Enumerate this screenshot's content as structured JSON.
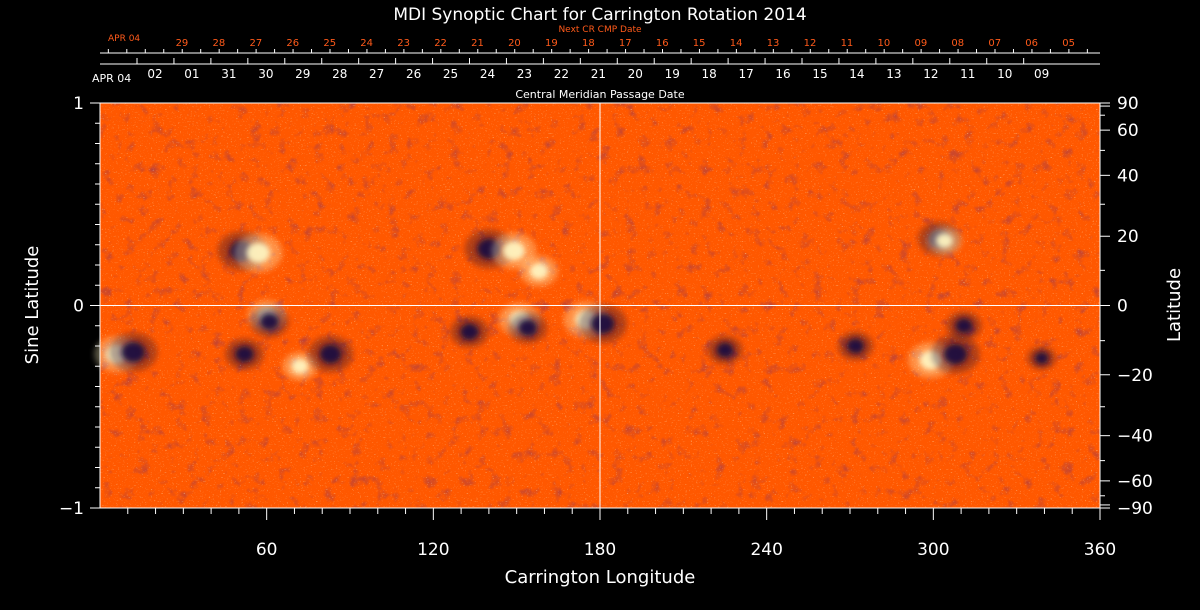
{
  "chart_data": {
    "type": "heatmap",
    "title": "MDI Synoptic Chart for Carrington Rotation 2014",
    "xlabel": "Carrington Longitude",
    "ylabel_left": "Sine Latitude",
    "ylabel_right": "Latitude",
    "xlim": [
      0,
      360
    ],
    "ylim": [
      -1,
      1
    ],
    "x_ticks": [
      60,
      120,
      180,
      240,
      300,
      360
    ],
    "y_ticks_left": [
      1,
      0,
      -1
    ],
    "y_ticks_right": [
      90,
      60,
      40,
      20,
      0,
      -20,
      -40,
      -60,
      -90
    ],
    "y_tick_labels_right": [
      "90",
      "60",
      "40",
      "20",
      "0",
      "−20",
      "−40",
      "−60",
      "−90"
    ],
    "y_tick_labels_left": [
      "1",
      "0",
      "−1"
    ],
    "grid": "crosshair at longitude 180 and sine latitude 0",
    "date_axis": {
      "label": "Central Meridian Passage Date",
      "start_label": "APR 04",
      "days": [
        "02",
        "01",
        "31",
        "30",
        "29",
        "28",
        "27",
        "26",
        "25",
        "24",
        "23",
        "22",
        "21",
        "20",
        "19",
        "18",
        "17",
        "16",
        "15",
        "14",
        "13",
        "12",
        "11",
        "10",
        "09"
      ],
      "day_longitudes": [
        19.8,
        33.1,
        46.4,
        59.7,
        73.0,
        86.3,
        99.6,
        112.9,
        126.2,
        139.5,
        152.8,
        166.1,
        179.4,
        192.7,
        206.0,
        219.3,
        232.6,
        245.9,
        259.2,
        272.5,
        285.8,
        299.1,
        312.4,
        325.7,
        339.0
      ]
    },
    "next_rotation_axis": {
      "label": "Next CR CMP Date",
      "start_label": "APR 04",
      "days": [
        "29",
        "28",
        "27",
        "26",
        "25",
        "24",
        "23",
        "22",
        "21",
        "20",
        "19",
        "18",
        "17",
        "16",
        "15",
        "14",
        "13",
        "12",
        "11",
        "10",
        "09",
        "08",
        "07",
        "06",
        "05"
      ],
      "day_longitudes": [
        29.5,
        42.8,
        56.1,
        69.4,
        82.7,
        96.0,
        109.3,
        122.6,
        135.9,
        149.2,
        162.5,
        175.8,
        189.1,
        202.4,
        215.7,
        229.0,
        242.3,
        255.6,
        268.9,
        282.2,
        295.5,
        308.8,
        322.1,
        335.4,
        348.7
      ]
    },
    "colors": {
      "background_field": "#ff5a00",
      "positive_polarity": "#fff4c0",
      "negative_polarity": "#1a1040",
      "axes": "#ffffff",
      "next_rotation_text": "#ff5a1a"
    },
    "magnetic_regions": [
      {
        "longitude": 51,
        "sine_latitude": 0.27,
        "polarity": "negative",
        "strength": 0.9
      },
      {
        "longitude": 57,
        "sine_latitude": 0.26,
        "polarity": "positive",
        "strength": 0.9
      },
      {
        "longitude": 140,
        "sine_latitude": 0.28,
        "polarity": "negative",
        "strength": 0.9
      },
      {
        "longitude": 149,
        "sine_latitude": 0.27,
        "polarity": "positive",
        "strength": 0.8
      },
      {
        "longitude": 158,
        "sine_latitude": 0.17,
        "polarity": "positive",
        "strength": 0.6
      },
      {
        "longitude": 302,
        "sine_latitude": 0.33,
        "polarity": "negative",
        "strength": 0.7
      },
      {
        "longitude": 304,
        "sine_latitude": 0.32,
        "polarity": "positive",
        "strength": 0.5
      },
      {
        "longitude": 6,
        "sine_latitude": -0.24,
        "polarity": "positive",
        "strength": 0.8
      },
      {
        "longitude": 12,
        "sine_latitude": -0.23,
        "polarity": "negative",
        "strength": 0.9
      },
      {
        "longitude": 52,
        "sine_latitude": -0.24,
        "polarity": "negative",
        "strength": 0.6
      },
      {
        "longitude": 60,
        "sine_latitude": -0.05,
        "polarity": "positive",
        "strength": 0.6
      },
      {
        "longitude": 61,
        "sine_latitude": -0.08,
        "polarity": "negative",
        "strength": 0.6
      },
      {
        "longitude": 72,
        "sine_latitude": -0.3,
        "polarity": "positive",
        "strength": 0.5
      },
      {
        "longitude": 83,
        "sine_latitude": -0.24,
        "polarity": "negative",
        "strength": 0.8
      },
      {
        "longitude": 133,
        "sine_latitude": -0.13,
        "polarity": "negative",
        "strength": 0.6
      },
      {
        "longitude": 151,
        "sine_latitude": -0.07,
        "polarity": "positive",
        "strength": 0.7
      },
      {
        "longitude": 154,
        "sine_latitude": -0.11,
        "polarity": "negative",
        "strength": 0.6
      },
      {
        "longitude": 175,
        "sine_latitude": -0.07,
        "polarity": "positive",
        "strength": 0.8
      },
      {
        "longitude": 181,
        "sine_latitude": -0.09,
        "polarity": "negative",
        "strength": 0.9
      },
      {
        "longitude": 225,
        "sine_latitude": -0.22,
        "polarity": "negative",
        "strength": 0.5
      },
      {
        "longitude": 272,
        "sine_latitude": -0.2,
        "polarity": "negative",
        "strength": 0.5
      },
      {
        "longitude": 299,
        "sine_latitude": -0.27,
        "polarity": "positive",
        "strength": 0.8
      },
      {
        "longitude": 308,
        "sine_latitude": -0.24,
        "polarity": "negative",
        "strength": 0.9
      },
      {
        "longitude": 311,
        "sine_latitude": -0.1,
        "polarity": "negative",
        "strength": 0.5
      },
      {
        "longitude": 339,
        "sine_latitude": -0.26,
        "polarity": "negative",
        "strength": 0.3
      }
    ]
  }
}
